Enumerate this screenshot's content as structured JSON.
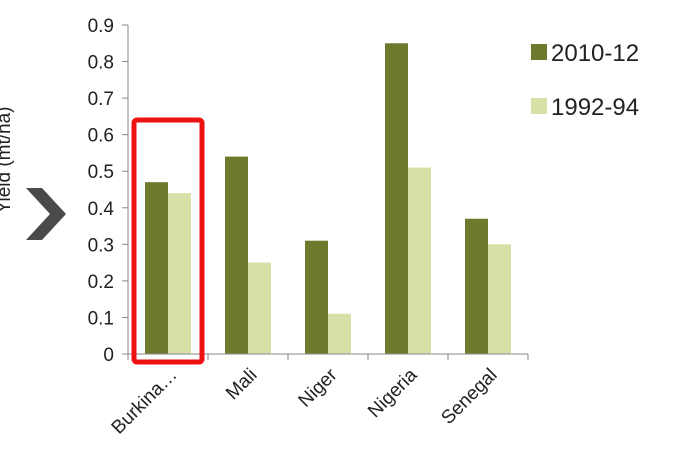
{
  "chart_data": {
    "type": "bar",
    "title": "",
    "xlabel": "",
    "ylabel": "Yield (mt/ha)",
    "categories": [
      "Burkina…",
      "Mali",
      "Niger",
      "Nigeria",
      "Senegal"
    ],
    "series": [
      {
        "name": "2010-12",
        "color": "#6b7a2c",
        "values": [
          0.47,
          0.54,
          0.31,
          0.85,
          0.37
        ]
      },
      {
        "name": "1992-94",
        "color": "#d7e0a6",
        "values": [
          0.44,
          0.25,
          0.11,
          0.51,
          0.3
        ]
      }
    ],
    "ylim": [
      0,
      0.9
    ],
    "yticks": [
      "0",
      "0.1",
      "0.2",
      "0.3",
      "0.4",
      "0.5",
      "0.6",
      "0.7",
      "0.8",
      "0.9"
    ],
    "grid": false,
    "legend_position": "top-right",
    "highlight": {
      "category": "Burkina…",
      "color": "#ee1111"
    },
    "marker": {
      "shape": "chevron-right",
      "color": "#4a4a4a"
    }
  }
}
